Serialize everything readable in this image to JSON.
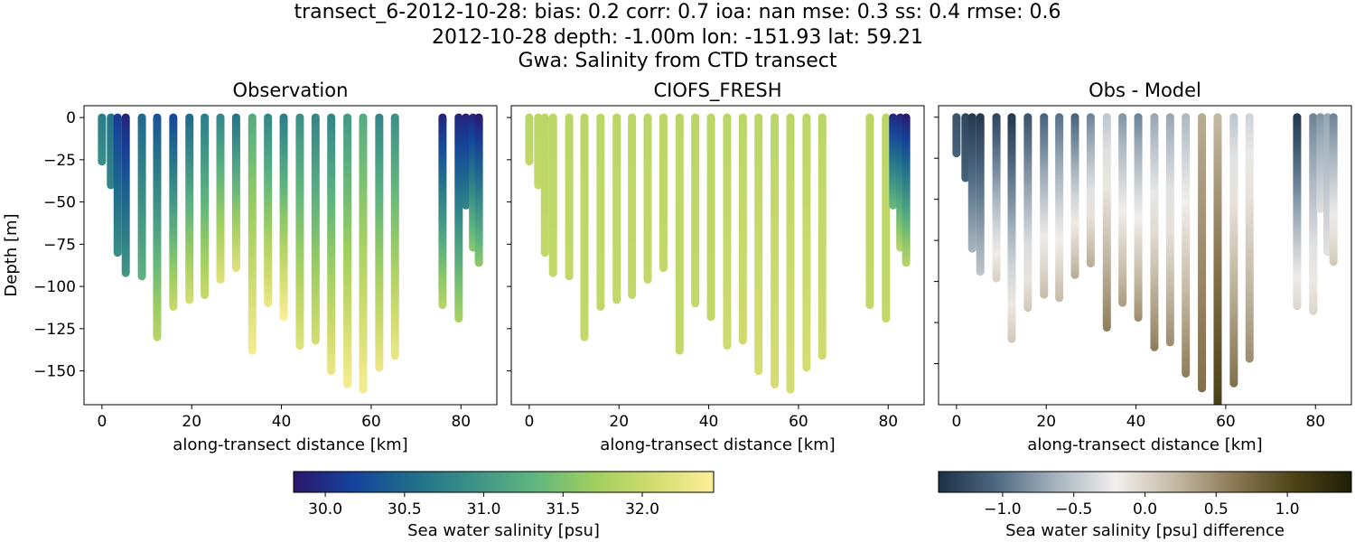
{
  "title": {
    "line1": "transect_6-2012-10-28: bias: 0.2  corr: 0.7  ioa: nan  mse: 0.3  ss: 0.4  rmse: 0.6",
    "line2": "2012-10-28 depth: -1.00m lon: -151.93 lat: 59.21",
    "line3": "Gwa: Salinity from CTD transect"
  },
  "chart_data": [
    {
      "type": "scatter",
      "title": "Observation",
      "xlabel": "along-transect distance [km]",
      "ylabel": "Depth [m]",
      "xlim": [
        -4,
        88
      ],
      "ylim": [
        -170,
        7
      ],
      "xticks": [
        0,
        20,
        40,
        60,
        80
      ],
      "yticks": [
        0,
        -25,
        -50,
        -75,
        -100,
        -125,
        -150
      ],
      "colormap": "haline",
      "clim": [
        29.8,
        32.45
      ],
      "profiles": [
        {
          "x": 0.0,
          "bottom": -26,
          "top_value": 30.7,
          "bottom_value": 30.9
        },
        {
          "x": 2.0,
          "bottom": -40,
          "top_value": 30.6,
          "bottom_value": 30.8
        },
        {
          "x": 3.5,
          "bottom": -80,
          "top_value": 30.1,
          "bottom_value": 30.9
        },
        {
          "x": 5.3,
          "bottom": -92,
          "top_value": 29.9,
          "bottom_value": 31.0
        },
        {
          "x": 8.9,
          "bottom": -94,
          "top_value": 30.5,
          "bottom_value": 31.3
        },
        {
          "x": 12.3,
          "bottom": -130,
          "top_value": 30.3,
          "bottom_value": 31.9
        },
        {
          "x": 15.9,
          "bottom": -112,
          "top_value": 30.2,
          "bottom_value": 32.0
        },
        {
          "x": 19.5,
          "bottom": -108,
          "top_value": 30.5,
          "bottom_value": 32.1
        },
        {
          "x": 22.9,
          "bottom": -105,
          "top_value": 30.7,
          "bottom_value": 32.0
        },
        {
          "x": 26.4,
          "bottom": -96,
          "top_value": 30.8,
          "bottom_value": 32.2
        },
        {
          "x": 29.9,
          "bottom": -89,
          "top_value": 30.6,
          "bottom_value": 32.2
        },
        {
          "x": 33.5,
          "bottom": -138,
          "top_value": 31.2,
          "bottom_value": 32.4
        },
        {
          "x": 37.0,
          "bottom": -110,
          "top_value": 30.8,
          "bottom_value": 32.3
        },
        {
          "x": 40.5,
          "bottom": -118,
          "top_value": 30.7,
          "bottom_value": 32.45
        },
        {
          "x": 44.1,
          "bottom": -135,
          "top_value": 30.9,
          "bottom_value": 32.2
        },
        {
          "x": 47.6,
          "bottom": -132,
          "top_value": 30.8,
          "bottom_value": 32.1
        },
        {
          "x": 51.1,
          "bottom": -150,
          "top_value": 30.8,
          "bottom_value": 32.3
        },
        {
          "x": 54.7,
          "bottom": -158,
          "top_value": 31.0,
          "bottom_value": 32.4
        },
        {
          "x": 58.2,
          "bottom": -161,
          "top_value": 31.2,
          "bottom_value": 32.4
        },
        {
          "x": 61.8,
          "bottom": -148,
          "top_value": 30.8,
          "bottom_value": 32.3
        },
        {
          "x": 65.3,
          "bottom": -141,
          "top_value": 30.9,
          "bottom_value": 32.3
        },
        {
          "x": 75.9,
          "bottom": -111,
          "top_value": 29.9,
          "bottom_value": 31.9
        },
        {
          "x": 79.5,
          "bottom": -119,
          "top_value": 29.9,
          "bottom_value": 31.8
        },
        {
          "x": 81.1,
          "bottom": -52,
          "top_value": 29.9,
          "bottom_value": 30.8
        },
        {
          "x": 82.7,
          "bottom": -77,
          "top_value": 29.9,
          "bottom_value": 31.6
        },
        {
          "x": 84.0,
          "bottom": -86,
          "top_value": 29.8,
          "bottom_value": 31.6
        }
      ]
    },
    {
      "type": "scatter",
      "title": "CIOFS_FRESH",
      "xlabel": "along-transect distance [km]",
      "ylabel": "",
      "xlim": [
        -4,
        88
      ],
      "ylim": [
        -170,
        7
      ],
      "xticks": [
        0,
        20,
        40,
        60,
        80
      ],
      "yticks": [
        0,
        -25,
        -50,
        -75,
        -100,
        -125,
        -150
      ],
      "colormap": "haline",
      "clim": [
        29.8,
        32.45
      ],
      "profiles": [
        {
          "x": 0.0,
          "bottom": -26,
          "top_value": 31.9,
          "bottom_value": 31.95
        },
        {
          "x": 2.0,
          "bottom": -40,
          "top_value": 31.9,
          "bottom_value": 31.95
        },
        {
          "x": 3.5,
          "bottom": -80,
          "top_value": 31.9,
          "bottom_value": 31.95
        },
        {
          "x": 5.3,
          "bottom": -92,
          "top_value": 31.9,
          "bottom_value": 31.95
        },
        {
          "x": 8.9,
          "bottom": -94,
          "top_value": 31.9,
          "bottom_value": 31.95
        },
        {
          "x": 12.3,
          "bottom": -130,
          "top_value": 31.9,
          "bottom_value": 31.95
        },
        {
          "x": 15.9,
          "bottom": -112,
          "top_value": 31.9,
          "bottom_value": 31.95
        },
        {
          "x": 19.5,
          "bottom": -108,
          "top_value": 31.9,
          "bottom_value": 31.95
        },
        {
          "x": 22.9,
          "bottom": -105,
          "top_value": 31.9,
          "bottom_value": 31.95
        },
        {
          "x": 26.4,
          "bottom": -96,
          "top_value": 31.9,
          "bottom_value": 31.95
        },
        {
          "x": 29.9,
          "bottom": -89,
          "top_value": 31.9,
          "bottom_value": 31.95
        },
        {
          "x": 33.5,
          "bottom": -138,
          "top_value": 31.9,
          "bottom_value": 31.95
        },
        {
          "x": 37.0,
          "bottom": -110,
          "top_value": 31.9,
          "bottom_value": 31.95
        },
        {
          "x": 40.5,
          "bottom": -118,
          "top_value": 31.9,
          "bottom_value": 31.95
        },
        {
          "x": 44.1,
          "bottom": -135,
          "top_value": 31.9,
          "bottom_value": 32.05
        },
        {
          "x": 47.6,
          "bottom": -132,
          "top_value": 31.9,
          "bottom_value": 32.05
        },
        {
          "x": 51.1,
          "bottom": -150,
          "top_value": 31.9,
          "bottom_value": 32.1
        },
        {
          "x": 54.7,
          "bottom": -158,
          "top_value": 31.9,
          "bottom_value": 32.1
        },
        {
          "x": 58.2,
          "bottom": -161,
          "top_value": 31.9,
          "bottom_value": 32.1
        },
        {
          "x": 61.8,
          "bottom": -148,
          "top_value": 31.9,
          "bottom_value": 32.1
        },
        {
          "x": 65.3,
          "bottom": -141,
          "top_value": 31.9,
          "bottom_value": 32.05
        },
        {
          "x": 75.9,
          "bottom": -111,
          "top_value": 31.9,
          "bottom_value": 31.95
        },
        {
          "x": 79.5,
          "bottom": -119,
          "top_value": 31.9,
          "bottom_value": 31.95
        },
        {
          "x": 81.1,
          "bottom": -52,
          "top_value": 29.9,
          "bottom_value": 31.4
        },
        {
          "x": 82.7,
          "bottom": -77,
          "top_value": 29.9,
          "bottom_value": 31.9
        },
        {
          "x": 84.0,
          "bottom": -86,
          "top_value": 29.8,
          "bottom_value": 31.9
        }
      ]
    },
    {
      "type": "scatter",
      "title": "Obs - Model",
      "xlabel": "along-transect distance [km]",
      "ylabel": "",
      "xlim": [
        -4,
        88
      ],
      "ylim": [
        -175,
        7
      ],
      "xticks": [
        0,
        20,
        40,
        60,
        80
      ],
      "yticks": [
        0,
        -25,
        -50,
        -75,
        -100,
        -125,
        -150
      ],
      "colormap": "diff",
      "clim": [
        -1.45,
        1.45
      ],
      "profiles": [
        {
          "x": 0.0,
          "bottom": -22,
          "top_value": -1.2,
          "bottom_value": -1.1
        },
        {
          "x": 2.0,
          "bottom": -37,
          "top_value": -1.3,
          "bottom_value": -1.1
        },
        {
          "x": 3.5,
          "bottom": -80,
          "top_value": -1.4,
          "bottom_value": -0.6
        },
        {
          "x": 5.3,
          "bottom": -94,
          "top_value": -1.4,
          "bottom_value": -0.5
        },
        {
          "x": 8.9,
          "bottom": -98,
          "top_value": -1.3,
          "bottom_value": 0.05
        },
        {
          "x": 12.3,
          "bottom": -135,
          "top_value": -1.4,
          "bottom_value": 0.1
        },
        {
          "x": 15.9,
          "bottom": -116,
          "top_value": -1.2,
          "bottom_value": 0.1
        },
        {
          "x": 19.5,
          "bottom": -108,
          "top_value": -1.1,
          "bottom_value": 0.2
        },
        {
          "x": 22.9,
          "bottom": -110,
          "top_value": -1.0,
          "bottom_value": 0.2
        },
        {
          "x": 26.4,
          "bottom": -96,
          "top_value": -1.1,
          "bottom_value": 0.3
        },
        {
          "x": 29.9,
          "bottom": -89,
          "top_value": -0.9,
          "bottom_value": 0.3
        },
        {
          "x": 33.5,
          "bottom": -128,
          "top_value": -0.5,
          "bottom_value": 0.6
        },
        {
          "x": 37.0,
          "bottom": -113,
          "top_value": -0.8,
          "bottom_value": 0.4
        },
        {
          "x": 40.5,
          "bottom": -122,
          "top_value": -0.9,
          "bottom_value": 0.5
        },
        {
          "x": 44.1,
          "bottom": -140,
          "top_value": -0.7,
          "bottom_value": 0.6
        },
        {
          "x": 47.6,
          "bottom": -137,
          "top_value": -0.7,
          "bottom_value": 0.5
        },
        {
          "x": 51.1,
          "bottom": -156,
          "top_value": -0.6,
          "bottom_value": 0.6
        },
        {
          "x": 54.7,
          "bottom": -165,
          "top_value": 0.3,
          "bottom_value": 0.7
        },
        {
          "x": 58.2,
          "bottom": -175,
          "top_value": 0.2,
          "bottom_value": 1.1
        },
        {
          "x": 61.8,
          "bottom": -162,
          "top_value": -0.5,
          "bottom_value": 0.7
        },
        {
          "x": 65.3,
          "bottom": -147,
          "top_value": -0.4,
          "bottom_value": 0.5
        },
        {
          "x": 75.9,
          "bottom": -115,
          "top_value": -1.4,
          "bottom_value": 0.0
        },
        {
          "x": 79.5,
          "bottom": -118,
          "top_value": -0.9,
          "bottom_value": 0.0
        },
        {
          "x": 81.1,
          "bottom": -56,
          "top_value": -0.8,
          "bottom_value": -0.3
        },
        {
          "x": 82.7,
          "bottom": -82,
          "top_value": -0.7,
          "bottom_value": -0.3
        },
        {
          "x": 84.0,
          "bottom": -88,
          "top_value": -0.9,
          "bottom_value": 0.1
        }
      ]
    }
  ],
  "colorbars": [
    {
      "label": "Sea water salinity [psu]",
      "range": [
        29.8,
        32.45
      ],
      "ticks": [
        30.0,
        30.5,
        31.0,
        31.5,
        32.0
      ],
      "tick_labels": [
        "30.0",
        "30.5",
        "31.0",
        "31.5",
        "32.0"
      ],
      "colormap": "haline"
    },
    {
      "label": "Sea water salinity [psu] difference",
      "range": [
        -1.45,
        1.45
      ],
      "ticks": [
        -1.0,
        -0.5,
        0.0,
        0.5,
        1.0
      ],
      "tick_labels": [
        "−1.0",
        "−0.5",
        "0.0",
        "0.5",
        "1.0"
      ],
      "colormap": "diff"
    }
  ],
  "colormaps": {
    "haline": [
      "#2a186c",
      "#14439c",
      "#206e8b",
      "#3d9287",
      "#5fb57f",
      "#9fcf5e",
      "#d2dc6f",
      "#fdef9a"
    ],
    "diff": [
      "#1c3046",
      "#4f6a83",
      "#a7b4bf",
      "#f2efec",
      "#c5baa6",
      "#8c7a55",
      "#4f4418",
      "#1f1e06"
    ]
  }
}
